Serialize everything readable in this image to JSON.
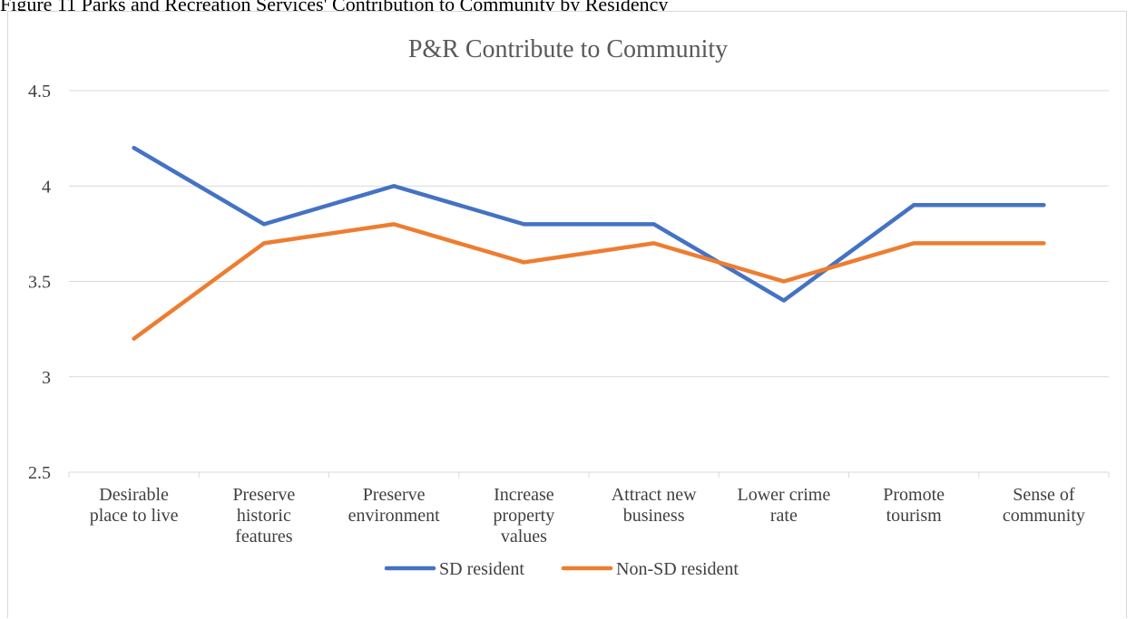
{
  "caption": "Figure 11 Parks and Recreation Services' Contribution to Community by Residency",
  "chart_data": {
    "type": "line",
    "title": "P&R Contribute to Community",
    "xlabel": "",
    "ylabel": "",
    "categories": [
      [
        "Desirable",
        "place to live"
      ],
      [
        "Preserve",
        "historic",
        "features"
      ],
      [
        "Preserve",
        "environment"
      ],
      [
        "Increase",
        "property",
        "values"
      ],
      [
        "Attract new",
        "business"
      ],
      [
        "Lower crime",
        "rate"
      ],
      [
        "Promote",
        "tourism"
      ],
      [
        "Sense of",
        "community"
      ]
    ],
    "series": [
      {
        "name": "SD resident",
        "color": "#4472c4",
        "values": [
          4.2,
          3.8,
          4.0,
          3.8,
          3.8,
          3.4,
          3.9,
          3.9
        ]
      },
      {
        "name": "Non-SD resident",
        "color": "#ed7d31",
        "values": [
          3.2,
          3.7,
          3.8,
          3.6,
          3.7,
          3.5,
          3.7,
          3.7
        ]
      }
    ],
    "ylim": [
      2.5,
      4.5
    ],
    "yticks": [
      "2.5",
      "3",
      "3.5",
      "4",
      "4.5"
    ],
    "grid": true,
    "legend_position": "bottom"
  }
}
